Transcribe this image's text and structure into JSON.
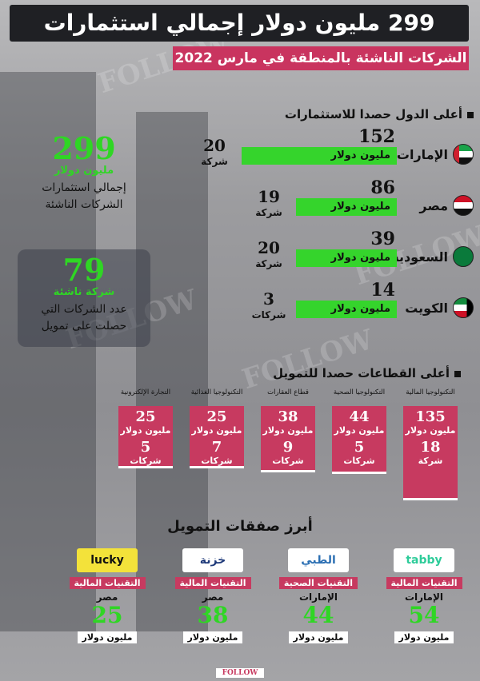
{
  "header": {
    "title": "299 مليون دولار إجمالي استثمارات",
    "subtitle": "الشركات الناشئة بالمنطقة في مارس 2022"
  },
  "countries_section": {
    "title": "أعلى الدول حصدا للاستثمارات"
  },
  "sectors_section": {
    "title": "أعلى القطاعات حصدا للتمويل"
  },
  "deals_section": {
    "title": "أبرز صفقات التمويل"
  },
  "summary": {
    "total": {
      "value": "299",
      "unit": "مليون دولار",
      "desc_line1": "إجمالي استثمارات",
      "desc_line2": "الشركات الناشئة"
    },
    "startups": {
      "value": "79",
      "unit": "شركة ناشئة",
      "desc_line1": "عدد الشركات التي",
      "desc_line2": "حصلت على تمويل"
    }
  },
  "watermark_text": "FOLLOW",
  "footer": {
    "logo": "FOLLOW"
  },
  "colors": {
    "accent_pink": "#c73a60",
    "accent_green": "#35d42c",
    "dark": "#1f2024"
  },
  "chart_data": [
    {
      "type": "bar",
      "title": "أعلى الدول حصدا للاستثمارات",
      "categories": [
        "الإمارات",
        "مصر",
        "السعودية",
        "الكويت"
      ],
      "series": [
        {
          "values": [
            152,
            86,
            39,
            14
          ]
        },
        {
          "values": [
            20,
            19,
            20,
            3
          ]
        }
      ],
      "value_labels": [
        "152",
        "86",
        "39",
        "14"
      ],
      "bar_text": "مليون دولار",
      "company_counts": [
        "20",
        "19",
        "20",
        "3"
      ],
      "company_labels": [
        "شركة",
        "شركة",
        "شركة",
        "شركات"
      ],
      "flags": [
        "uae-flag-icon",
        "egypt-flag-icon",
        "saudi-flag-icon",
        "kuwait-flag-icon"
      ]
    },
    {
      "type": "bar",
      "title": "أعلى القطاعات حصدا للتمويل",
      "categories": [
        "التكنولوجيا المالية",
        "التكنولوجيا الصحية",
        "قطاع العقارات",
        "التكنولوجيا الغذائية",
        "التجارة الإلكترونية"
      ],
      "series": [
        {
          "values": [
            135,
            44,
            38,
            25,
            25
          ]
        },
        {
          "values": [
            18,
            5,
            9,
            7,
            5
          ]
        }
      ],
      "value_labels": [
        "135",
        "44",
        "38",
        "25",
        "25"
      ],
      "value_unit": "مليون دولار",
      "company_counts": [
        "18",
        "5",
        "9",
        "7",
        "5"
      ],
      "company_labels": [
        "شركة",
        "شركات",
        "شركات",
        "شركات",
        "شركات"
      ]
    }
  ],
  "deals": [
    {
      "logo": "tabby",
      "sector": "التقنيات المالية",
      "country": "الإمارات",
      "value": "54",
      "unit": "مليون دولار"
    },
    {
      "logo": "الطبي",
      "sector": "التقنيات الصحية",
      "country": "الإمارات",
      "value": "44",
      "unit": "مليون دولار"
    },
    {
      "logo": "خزنة",
      "sector": "التقنيات المالية",
      "country": "مصر",
      "value": "38",
      "unit": "مليون دولار"
    },
    {
      "logo": "lucky",
      "sector": "التقنيات المالية",
      "country": "مصر",
      "value": "25",
      "unit": "مليون دولار"
    }
  ]
}
